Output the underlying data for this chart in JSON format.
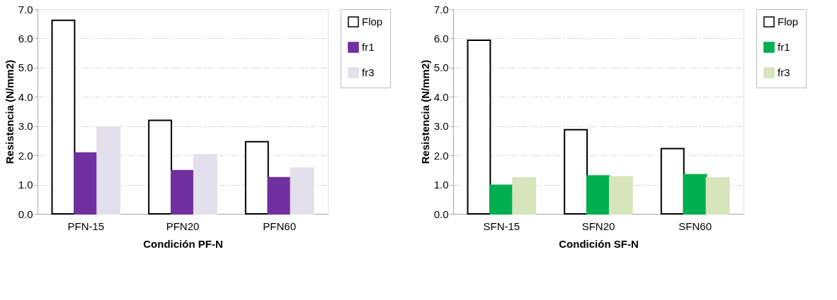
{
  "chart_data": [
    {
      "type": "bar",
      "categories": [
        "PFN-15",
        "PFN20",
        "PFN60"
      ],
      "xlabel": "Condición PF-N",
      "ylabel": "Resistencia  (N/mm2)",
      "series": [
        {
          "name": "Flop",
          "color": "#ffffff",
          "values": [
            6.62,
            3.2,
            2.47
          ]
        },
        {
          "name": "fr1",
          "color": "#7030a0",
          "values": [
            2.08,
            1.48,
            1.24
          ]
        },
        {
          "name": "fr3",
          "color": "#e4dfec",
          "values": [
            2.95,
            2.02,
            1.56
          ]
        }
      ],
      "ylim": [
        0,
        7
      ],
      "yticks": [
        {
          "value": 0,
          "label": "0.0"
        },
        {
          "value": 1,
          "label": "1.0"
        },
        {
          "value": 2,
          "label": "2.0"
        },
        {
          "value": 3,
          "label": "3.0"
        },
        {
          "value": 4,
          "label": "4.0"
        },
        {
          "value": 5,
          "label": "5.0"
        },
        {
          "value": 6,
          "label": "6.0"
        },
        {
          "value": 7,
          "label": "7.0"
        }
      ],
      "grid": "y",
      "legend": "top right"
    },
    {
      "type": "bar",
      "categories": [
        "SFN-15",
        "SFN20",
        "SFN60"
      ],
      "xlabel": "Condición SF-N",
      "ylabel": "Resistencia  (N/mm2)",
      "series": [
        {
          "name": "Flop",
          "color": "#ffffff",
          "values": [
            5.94,
            2.88,
            2.23
          ]
        },
        {
          "name": "fr1",
          "color": "#00b050",
          "values": [
            0.98,
            1.3,
            1.34
          ]
        },
        {
          "name": "fr3",
          "color": "#d8e4bc",
          "values": [
            1.23,
            1.27,
            1.23
          ]
        }
      ],
      "ylim": [
        0,
        7
      ],
      "yticks": [
        {
          "value": 0,
          "label": "0.0"
        },
        {
          "value": 1,
          "label": "1.0"
        },
        {
          "value": 2,
          "label": "2.0"
        },
        {
          "value": 3,
          "label": "3.0"
        },
        {
          "value": 4,
          "label": "4.0"
        },
        {
          "value": 5,
          "label": "5.0"
        },
        {
          "value": 6,
          "label": "6.0"
        },
        {
          "value": 7,
          "label": "7.0"
        }
      ],
      "grid": "y",
      "legend": "top right"
    }
  ]
}
